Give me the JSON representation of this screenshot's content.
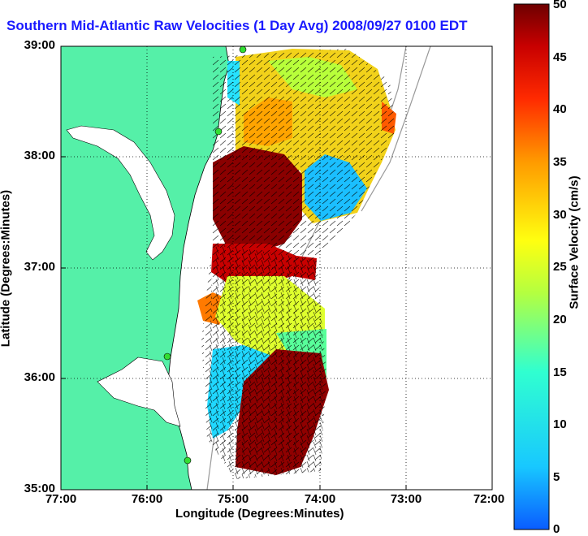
{
  "map": {
    "title": "Southern Mid-Atlantic Raw Velocities (1 Day Avg) 2008/09/27 0100 EDT",
    "xlabel": "Longitude (Degrees:Minutes)",
    "ylabel": "Latitude (Degrees:Minutes)",
    "x_ticks": [
      "77:00",
      "76:00",
      "75:00",
      "74:00",
      "73:00",
      "72:00"
    ],
    "y_ticks": [
      "39:00",
      "38:00",
      "37:00",
      "36:00",
      "35:00"
    ],
    "lon_range": [
      -77,
      -72
    ],
    "lat_range": [
      35,
      39
    ],
    "colorbar": {
      "label": "Surface Velocity (cm/s)",
      "ticks": [
        "50",
        "45",
        "40",
        "35",
        "30",
        "25",
        "20",
        "15",
        "10",
        "5",
        "0"
      ],
      "range": [
        0,
        50
      ],
      "colormap": "jet"
    },
    "colors": {
      "land": "#55f0a8",
      "water": "#ffffff",
      "title": "#1a1aff",
      "station": "#33dd33"
    },
    "stations": [
      "station-1",
      "station-2",
      "station-3",
      "station-4"
    ]
  }
}
